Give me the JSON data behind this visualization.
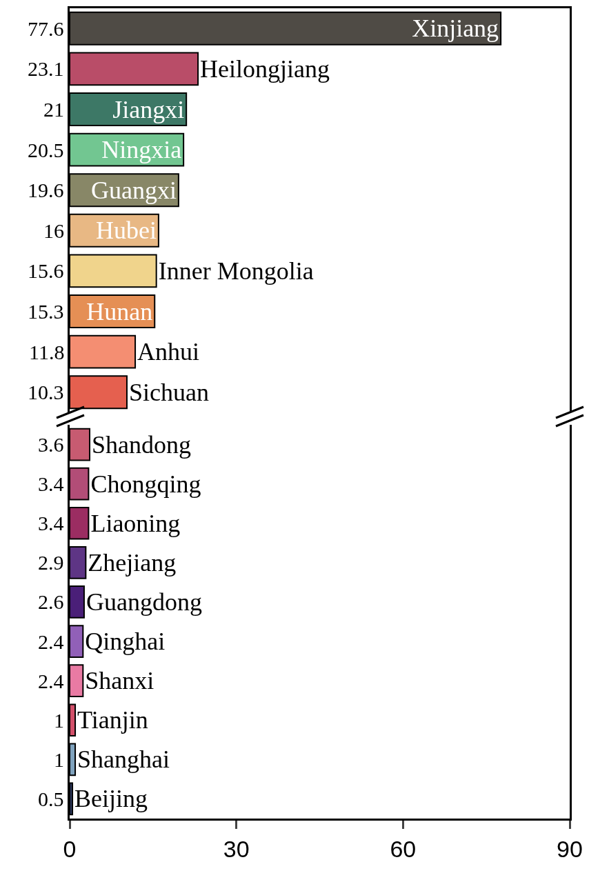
{
  "chart_data": [
    {
      "type": "bar",
      "orientation": "horizontal",
      "categories": [
        "Xinjiang",
        "Heilongjiang",
        "Jiangxi",
        "Ningxia",
        "Guangxi",
        "Hubei",
        "Inner Mongolia",
        "Hunan",
        "Anhui",
        "Sichuan"
      ],
      "values": [
        77.6,
        23.1,
        21,
        20.5,
        19.6,
        16,
        15.6,
        15.3,
        11.8,
        10.3
      ],
      "colors": [
        "#4f4b45",
        "#b94d68",
        "#3d7866",
        "#72c691",
        "#888767",
        "#e8b884",
        "#f0d48c",
        "#e58f55",
        "#f48e72",
        "#e5604f"
      ],
      "data_labels": true,
      "xlim": [
        0,
        90
      ],
      "xticks": [
        0,
        30,
        60,
        90
      ],
      "tick_labels": false,
      "grid": false
    },
    {
      "type": "bar",
      "orientation": "horizontal",
      "categories": [
        "Shandong",
        "Chongqing",
        "Liaoning",
        "Zhejiang",
        "Guangdong",
        "Qinghai",
        "Shanxi",
        "Tianjin",
        "Shanghai",
        "Beijing"
      ],
      "values": [
        3.6,
        3.4,
        3.4,
        2.9,
        2.6,
        2.4,
        2.4,
        1,
        1,
        0.5
      ],
      "colors": [
        "#c75b71",
        "#b24d77",
        "#9b2d62",
        "#5e3585",
        "#4a1f78",
        "#9160b8",
        "#e97aa3",
        "#d2506a",
        "#7fa2bd",
        "#2e3a60"
      ],
      "data_labels": true,
      "xlim": [
        0,
        90
      ],
      "xticks": [
        0,
        30,
        60,
        90
      ],
      "tick_labels": "x",
      "grid": false
    }
  ]
}
